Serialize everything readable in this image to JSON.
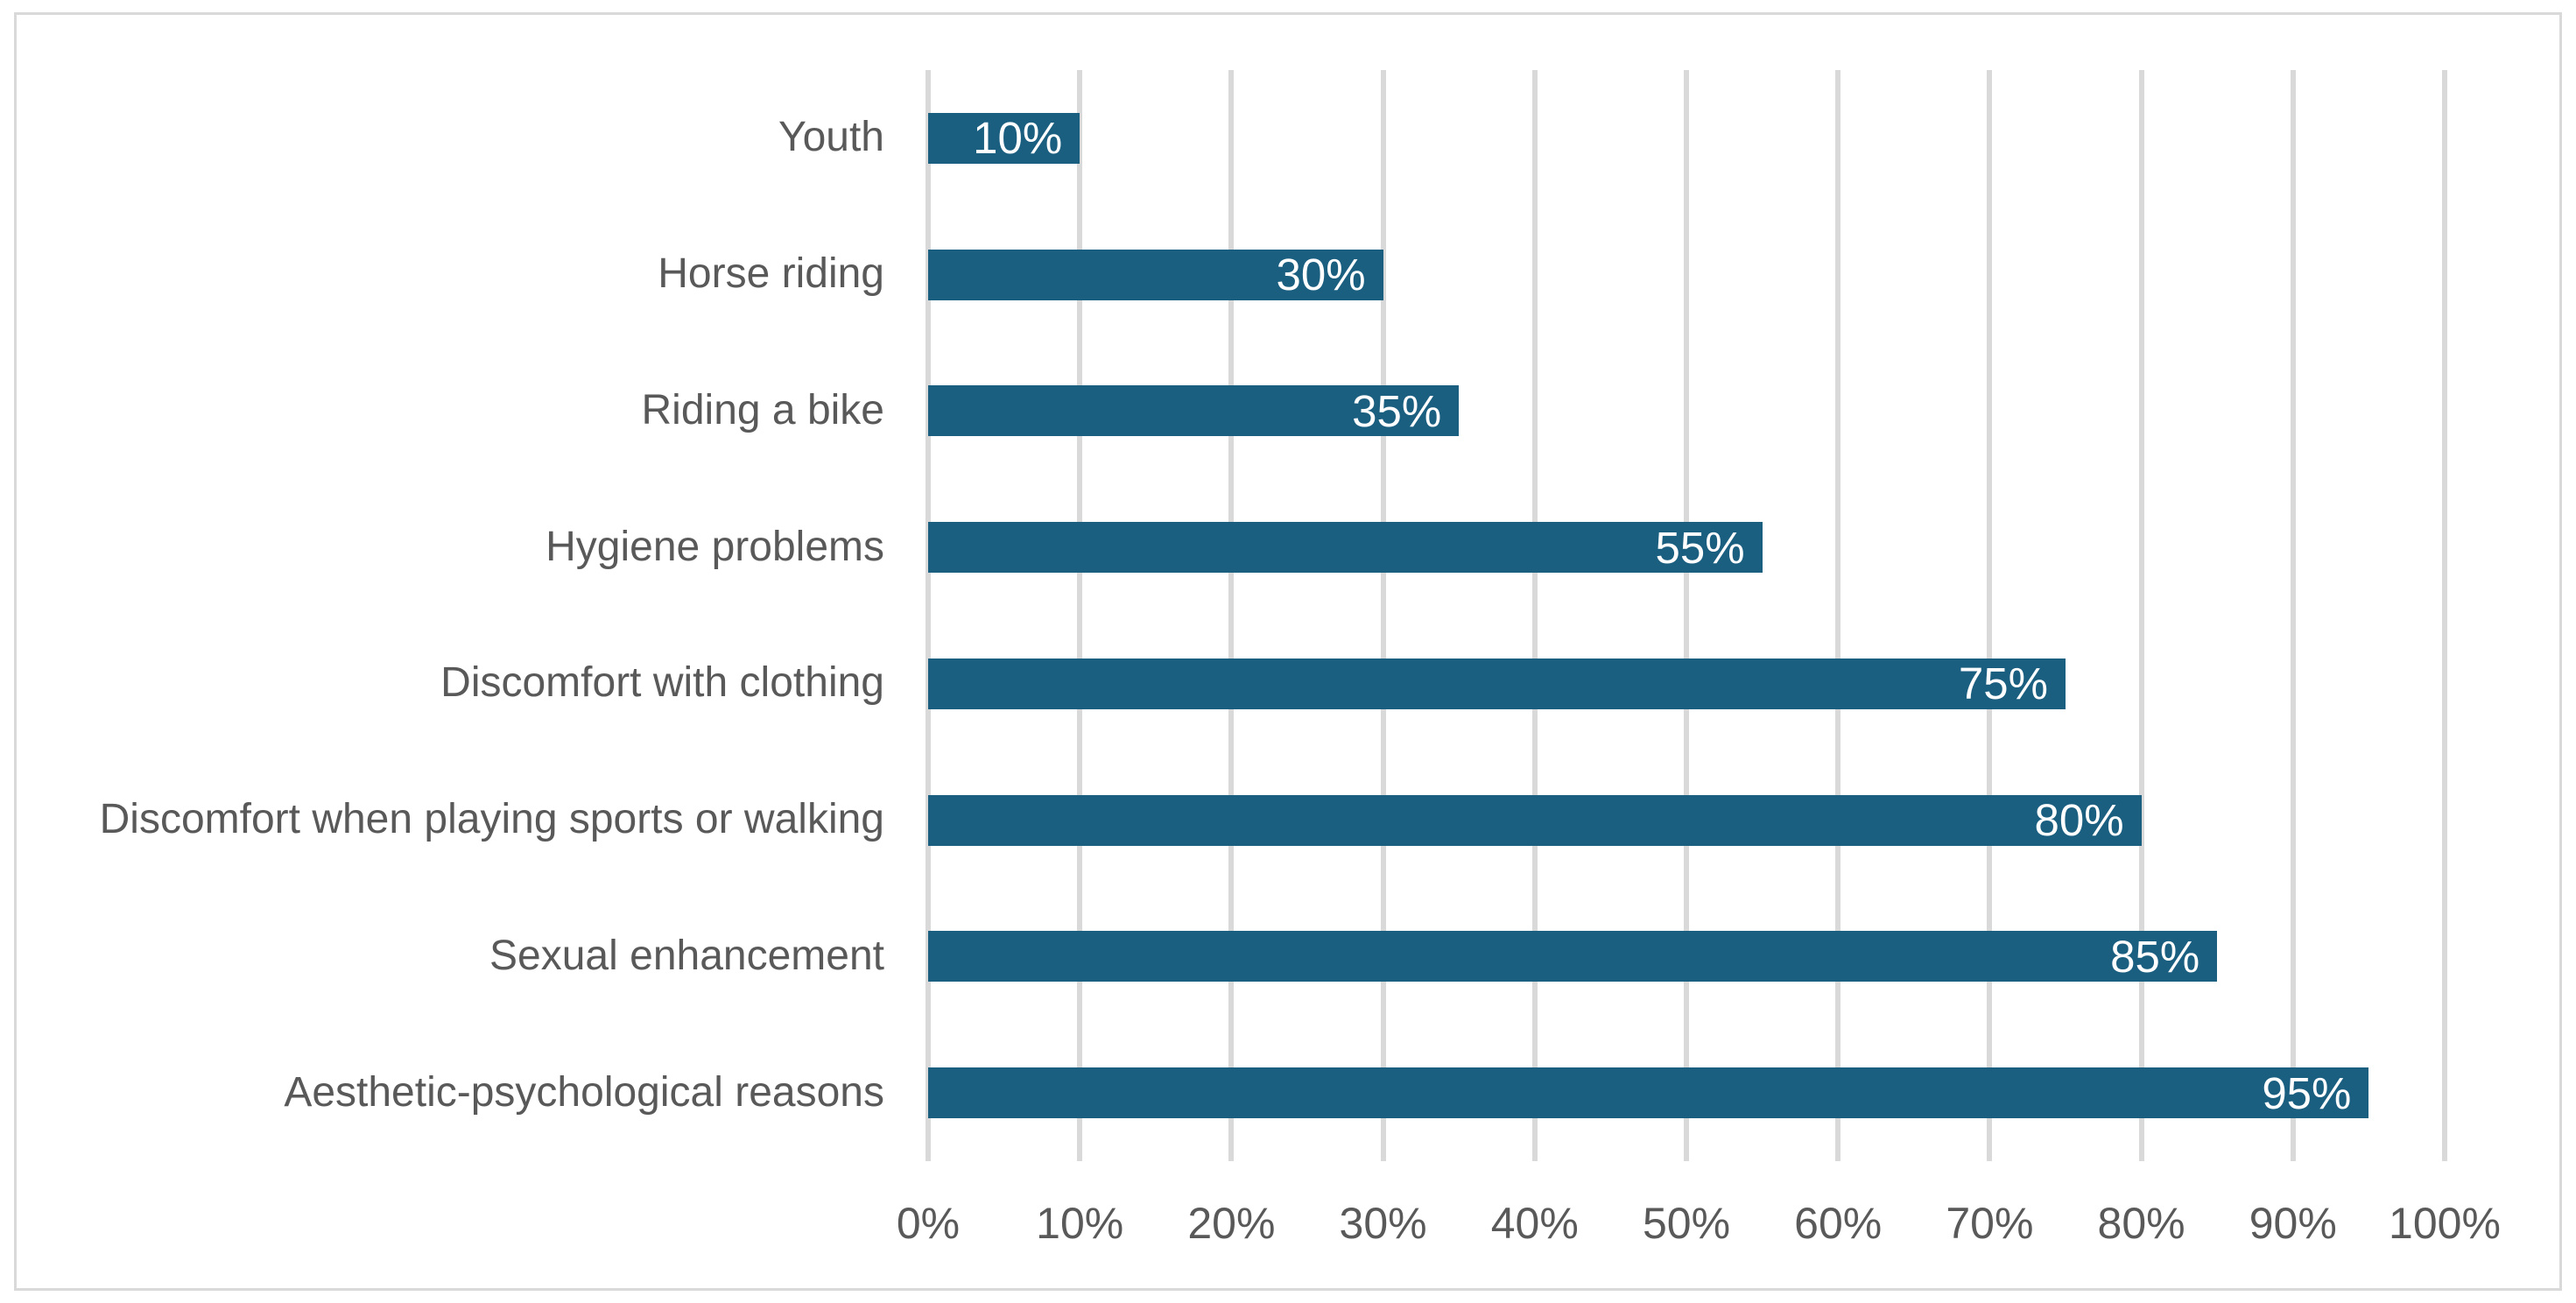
{
  "chart_data": {
    "type": "bar",
    "orientation": "horizontal",
    "title": "",
    "xlabel": "",
    "ylabel": "",
    "categories": [
      "Youth",
      "Horse riding",
      "Riding a bike",
      "Hygiene problems",
      "Discomfort with clothing",
      "Discomfort when playing sports or walking",
      "Sexual enhancement",
      "Aesthetic-psychological reasons"
    ],
    "values": [
      10,
      30,
      35,
      55,
      75,
      80,
      85,
      95
    ],
    "bar_labels": [
      "10%",
      "30%",
      "35%",
      "55%",
      "75%",
      "80%",
      "85%",
      "95%"
    ],
    "x_axis": {
      "min": 0,
      "max": 100,
      "step": 10,
      "tick_labels": [
        "0%",
        "10%",
        "20%",
        "30%",
        "40%",
        "50%",
        "60%",
        "70%",
        "80%",
        "90%",
        "100%"
      ]
    },
    "grid": "vertical-gridlines-on",
    "legend": "none",
    "colors": {
      "bar": "#1A5E80",
      "gridline": "#D9D9D9",
      "frame_border": "#D9D9D9",
      "axis_text": "#595959",
      "bar_label_text": "#FFFFFF",
      "background": "#FFFFFF"
    }
  }
}
